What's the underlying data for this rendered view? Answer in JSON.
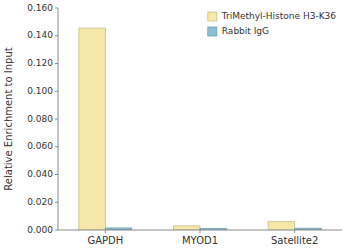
{
  "chart_data": {
    "type": "bar",
    "categories": [
      "GAPDH",
      "MYOD1",
      "Satellite2"
    ],
    "series": [
      {
        "name": "TriMethyl-Histone H3-K36",
        "color": "#F5E8A8",
        "values": [
          0.1455,
          0.003,
          0.006
        ]
      },
      {
        "name": "Rabbit IgG",
        "color": "#8BBFD4",
        "values": [
          0.0015,
          0.0012,
          0.0013
        ]
      }
    ],
    "ylabel": "Relative Enrichment to Input",
    "ylim": [
      0,
      0.16
    ],
    "yticks": [
      {
        "value": 0,
        "label": "0.000"
      },
      {
        "value": 0.02,
        "label": "0.020"
      },
      {
        "value": 0.04,
        "label": "0.040"
      },
      {
        "value": 0.06,
        "label": "0.060"
      },
      {
        "value": 0.08,
        "label": "0.080"
      },
      {
        "value": 0.1,
        "label": "0.100"
      },
      {
        "value": 0.12,
        "label": "0.120"
      },
      {
        "value": 0.14,
        "label": "0.140"
      },
      {
        "value": 0.16,
        "label": "0.160"
      }
    ],
    "grid": false,
    "legend": "upper right"
  }
}
